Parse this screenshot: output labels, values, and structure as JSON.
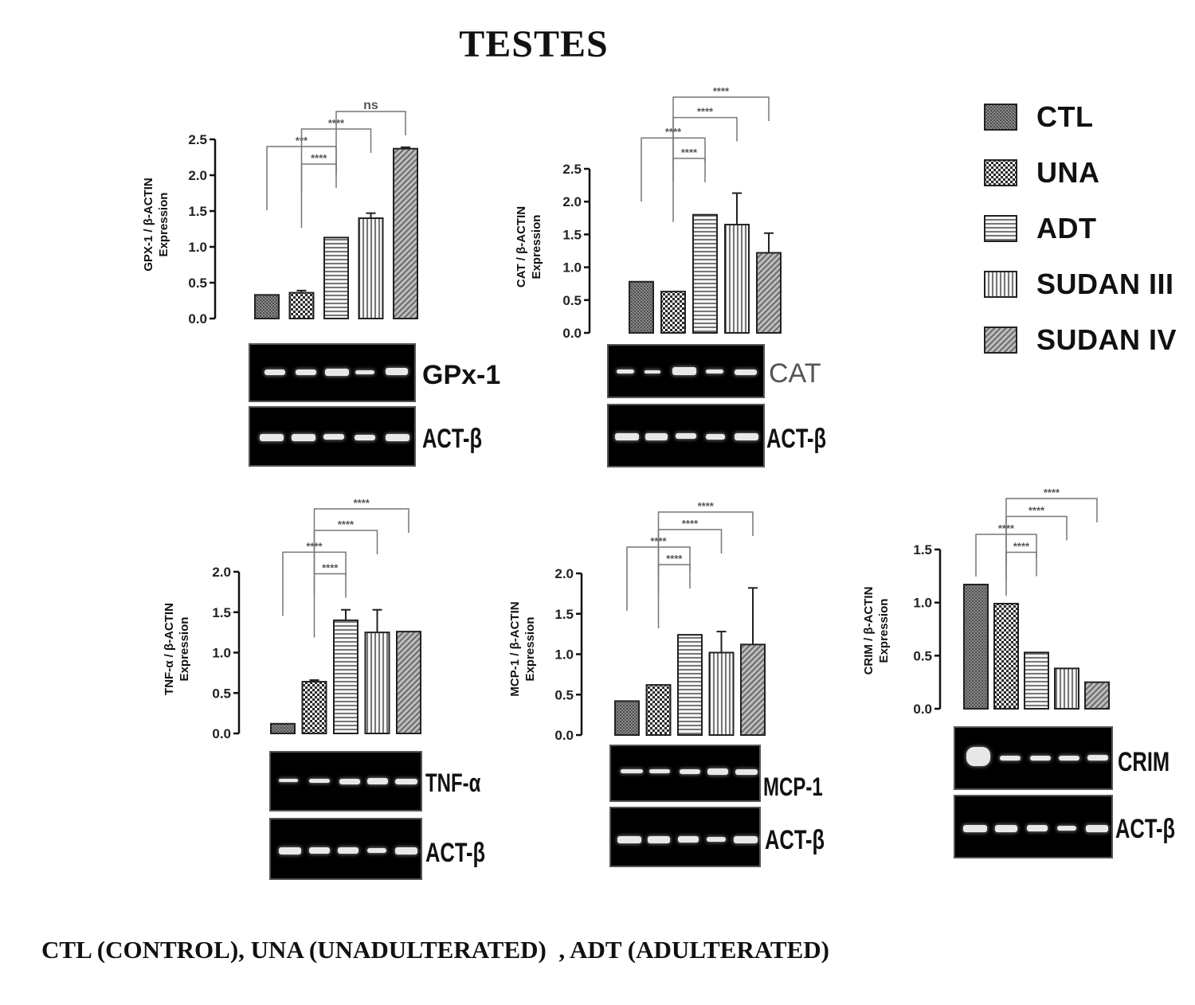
{
  "title": "TESTES",
  "footnote": "CTL (CONTROL), UNA (UNADULTERATED)  , ADT (ADULTERATED)",
  "legend": [
    {
      "label": "CTL",
      "pattern": "dots"
    },
    {
      "label": "UNA",
      "pattern": "checker"
    },
    {
      "label": "ADT",
      "pattern": "hlines"
    },
    {
      "label": "SUDAN III",
      "pattern": "vlines"
    },
    {
      "label": "SUDAN IV",
      "pattern": "diag"
    }
  ],
  "chart_data": [
    {
      "type": "bar",
      "id": "gpx1",
      "categories": [
        "CTL",
        "UNA",
        "ADT",
        "SUDAN III",
        "SUDAN IV"
      ],
      "values": [
        0.33,
        0.36,
        1.13,
        1.4,
        2.37
      ],
      "errors": [
        0.0,
        0.03,
        0.0,
        0.07,
        0.02
      ],
      "ylabel": [
        "GPX-1 / β-ACTIN",
        "Expression"
      ],
      "yticks": [
        "0.0",
        "0.5",
        "1.0",
        "1.5",
        "2.0",
        "2.5"
      ],
      "ylim": [
        0,
        2.5
      ],
      "significance": [
        {
          "from": 1,
          "to": 2,
          "label": "****"
        },
        {
          "from": 0,
          "to": 2,
          "label": "***"
        },
        {
          "from": 1,
          "to": 3,
          "label": "****"
        },
        {
          "from": 2,
          "to": 4,
          "label": "ns"
        }
      ],
      "gel": {
        "target": "GPx-1",
        "reference": "ACT-β"
      }
    },
    {
      "type": "bar",
      "id": "cat",
      "categories": [
        "CTL",
        "UNA",
        "ADT",
        "SUDAN III",
        "SUDAN IV"
      ],
      "values": [
        0.78,
        0.63,
        1.8,
        1.65,
        1.22
      ],
      "errors": [
        0.0,
        0.0,
        0.0,
        0.48,
        0.3
      ],
      "ylabel": [
        "CAT / β-ACTIN",
        "Expression"
      ],
      "yticks": [
        "0.0",
        "0.5",
        "1.0",
        "1.5",
        "2.0",
        "2.5"
      ],
      "ylim": [
        0,
        2.5
      ],
      "significance": [
        {
          "from": 1,
          "to": 2,
          "label": "****"
        },
        {
          "from": 0,
          "to": 2,
          "label": "****"
        },
        {
          "from": 1,
          "to": 3,
          "label": "****"
        },
        {
          "from": 1,
          "to": 4,
          "label": "****"
        }
      ],
      "gel": {
        "target": "CAT",
        "reference": "ACT-β"
      }
    },
    {
      "type": "bar",
      "id": "tnf",
      "categories": [
        "CTL",
        "UNA",
        "ADT",
        "SUDAN III",
        "SUDAN IV"
      ],
      "values": [
        0.12,
        0.64,
        1.4,
        1.25,
        1.26
      ],
      "errors": [
        0.0,
        0.02,
        0.13,
        0.28,
        0.0
      ],
      "ylabel": [
        "TNF-α / β-ACTIN",
        "Expression"
      ],
      "yticks": [
        "0.0",
        "0.5",
        "1.0",
        "1.5",
        "2.0"
      ],
      "ylim": [
        0,
        2.0
      ],
      "significance": [
        {
          "from": 1,
          "to": 2,
          "label": "****"
        },
        {
          "from": 0,
          "to": 2,
          "label": "****"
        },
        {
          "from": 1,
          "to": 3,
          "label": "****"
        },
        {
          "from": 1,
          "to": 4,
          "label": "****"
        }
      ],
      "gel": {
        "target": "TNF-α",
        "reference": "ACT-β"
      }
    },
    {
      "type": "bar",
      "id": "mcp1",
      "categories": [
        "CTL",
        "UNA",
        "ADT",
        "SUDAN III",
        "SUDAN IV"
      ],
      "values": [
        0.42,
        0.62,
        1.24,
        1.02,
        1.12
      ],
      "errors": [
        0.0,
        0.0,
        0.0,
        0.26,
        0.7
      ],
      "ylabel": [
        "MCP-1 / β-ACTIN",
        "Expression"
      ],
      "yticks": [
        "0.0",
        "0.5",
        "1.0",
        "1.5",
        "2.0"
      ],
      "ylim": [
        0,
        2.0
      ],
      "significance": [
        {
          "from": 1,
          "to": 2,
          "label": "****"
        },
        {
          "from": 0,
          "to": 2,
          "label": "****"
        },
        {
          "from": 1,
          "to": 3,
          "label": "****"
        },
        {
          "from": 1,
          "to": 4,
          "label": "****"
        }
      ],
      "gel": {
        "target": "MCP-1",
        "reference": "ACT-β"
      }
    },
    {
      "type": "bar",
      "id": "crim",
      "categories": [
        "CTL",
        "UNA",
        "ADT",
        "SUDAN III",
        "SUDAN IV"
      ],
      "values": [
        1.17,
        0.99,
        0.53,
        0.38,
        0.25
      ],
      "errors": [
        0.0,
        0.0,
        0.0,
        0.0,
        0.0
      ],
      "ylabel": [
        "CRIM / β-ACTIN",
        "Expression"
      ],
      "yticks": [
        "0.0",
        "0.5",
        "1.0",
        "1.5"
      ],
      "ylim": [
        0,
        1.5
      ],
      "significance": [
        {
          "from": 1,
          "to": 2,
          "label": "****"
        },
        {
          "from": 0,
          "to": 2,
          "label": "****"
        },
        {
          "from": 1,
          "to": 3,
          "label": "****"
        },
        {
          "from": 1,
          "to": 4,
          "label": "****"
        }
      ],
      "gel": {
        "target": "CRIM",
        "reference": "ACT-β"
      }
    }
  ]
}
